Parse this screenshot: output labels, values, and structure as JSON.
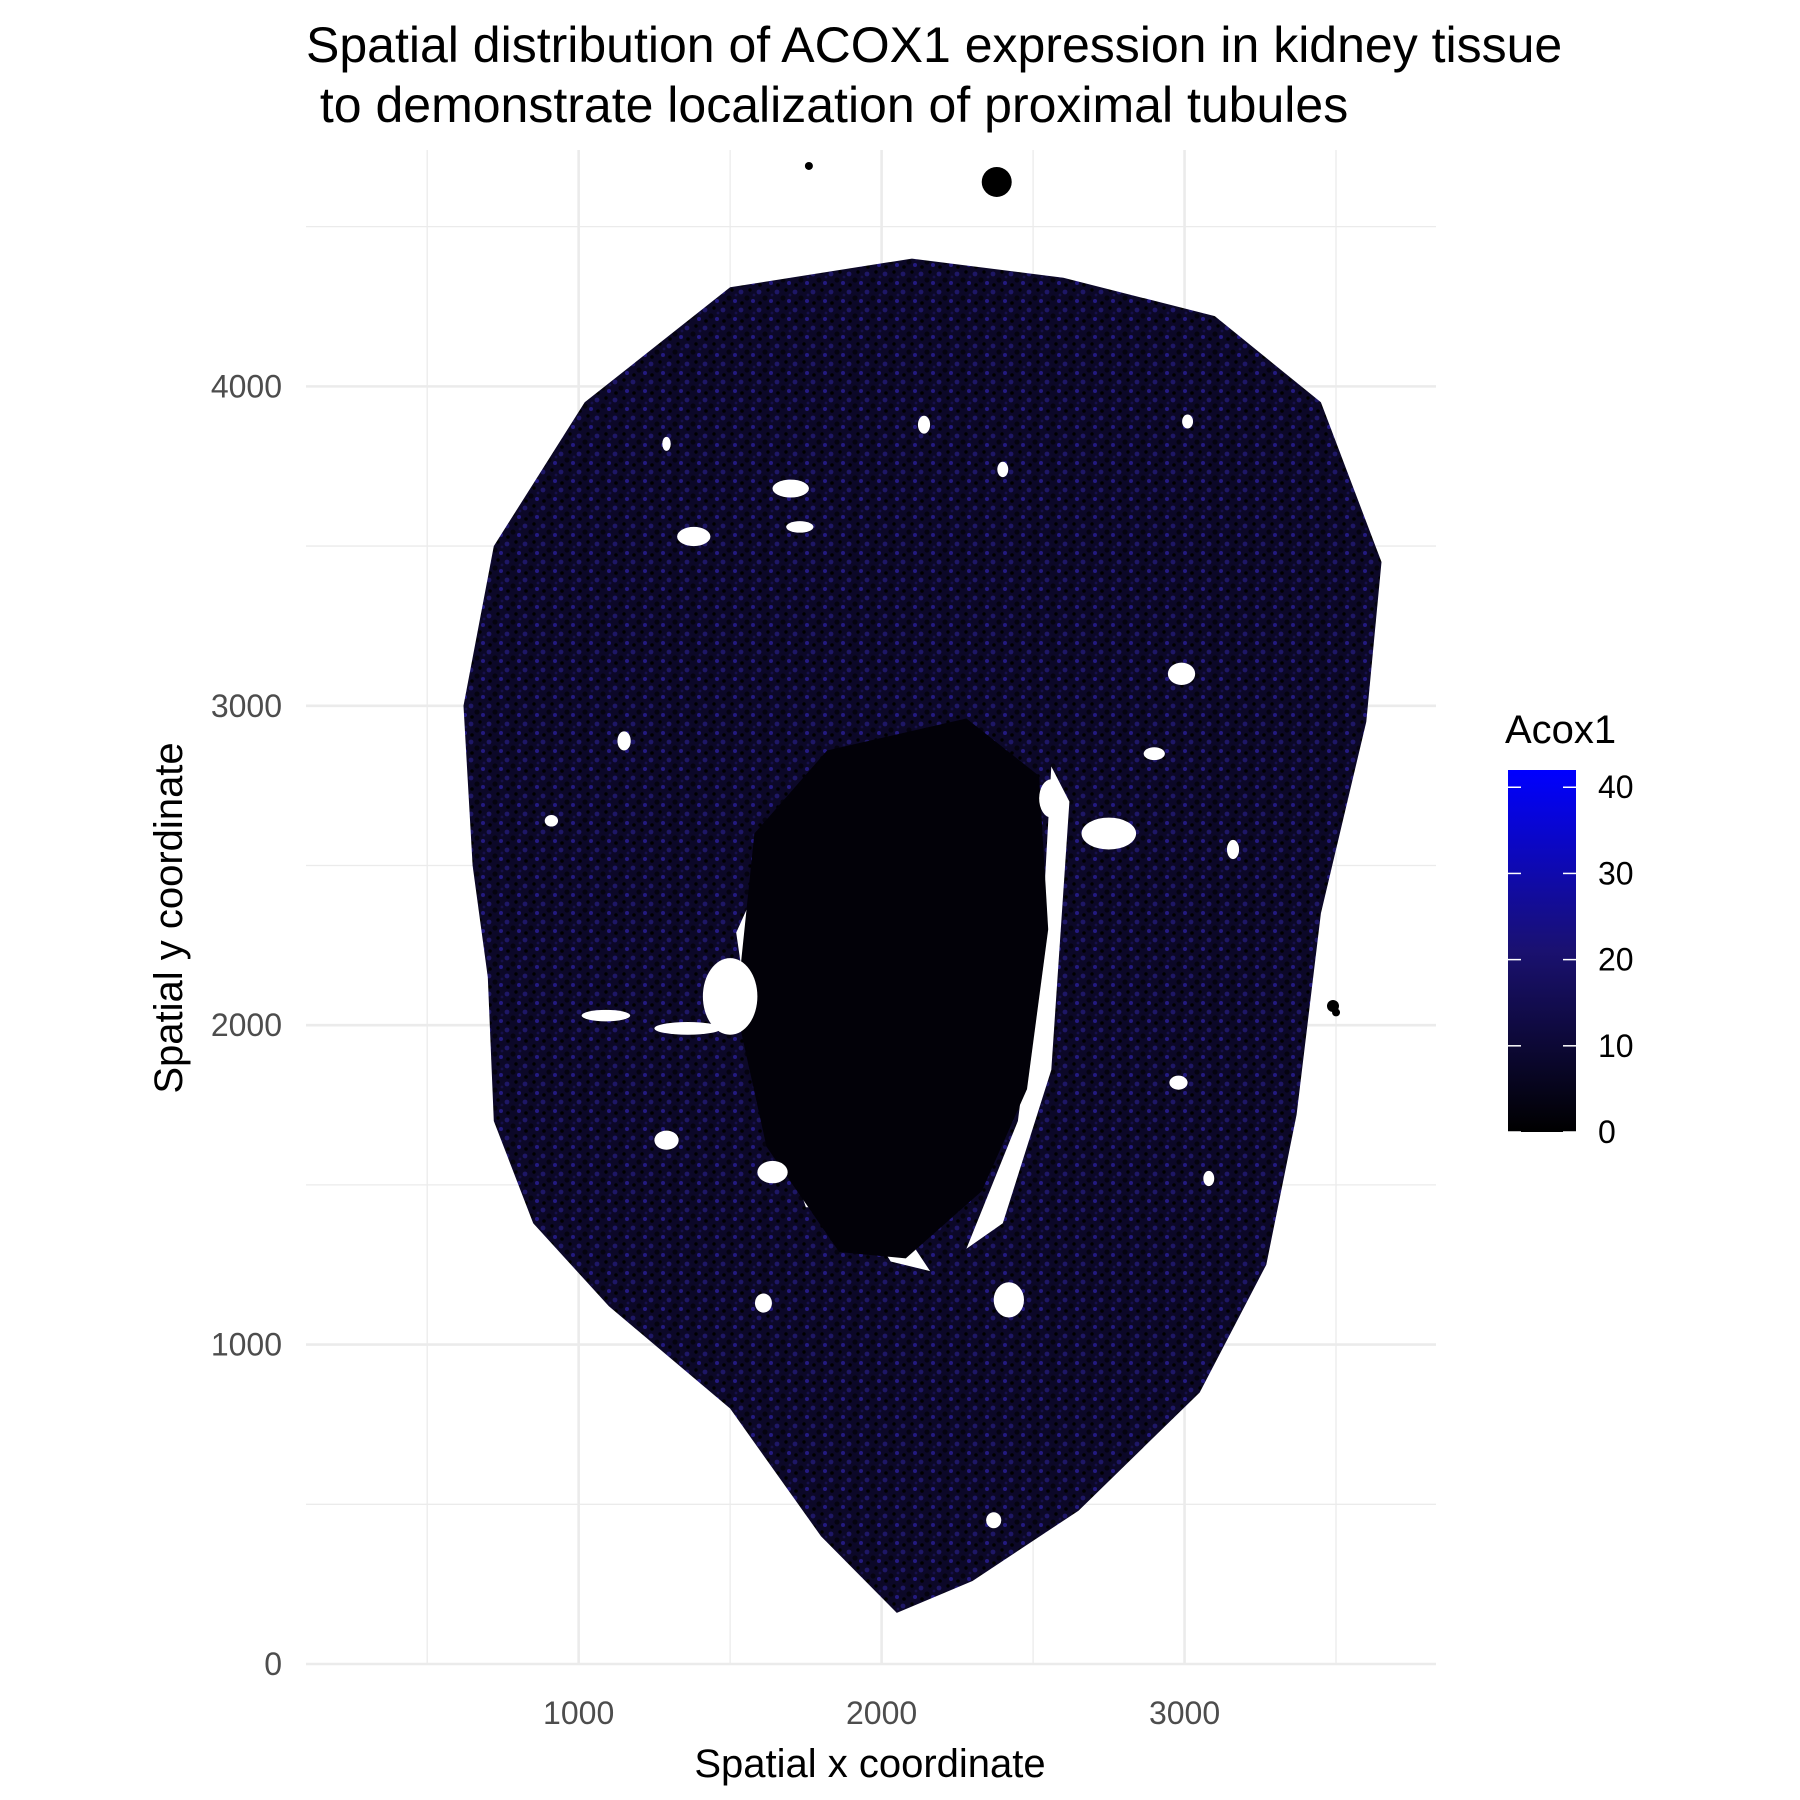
{
  "chart_data": {
    "type": "scatter",
    "title_lines": [
      "Spatial distribution of ACOX1 expression in kidney tissue",
      " to demonstrate localization of proximal tubules"
    ],
    "xlabel": "Spatial x coordinate",
    "ylabel": "Spatial y coordinate",
    "xlim": [
      100,
      3830
    ],
    "ylim": [
      0,
      4740
    ],
    "x_ticks": [
      1000,
      2000,
      3000
    ],
    "y_ticks": [
      0,
      1000,
      2000,
      3000,
      4000
    ],
    "grid": true,
    "legend": {
      "title": "Acox1",
      "placement": "right",
      "color_low": "#000000",
      "color_high": "#0000ff",
      "range": [
        0,
        42
      ],
      "ticks": [
        0,
        10,
        20,
        30,
        40
      ]
    },
    "tissue_outline": [
      [
        700,
        2150
      ],
      [
        720,
        1700
      ],
      [
        850,
        1380
      ],
      [
        1100,
        1120
      ],
      [
        1500,
        800
      ],
      [
        1800,
        400
      ],
      [
        2050,
        160
      ],
      [
        2300,
        260
      ],
      [
        2650,
        480
      ],
      [
        3050,
        850
      ],
      [
        3270,
        1250
      ],
      [
        3370,
        1720
      ],
      [
        3450,
        2350
      ],
      [
        3600,
        2950
      ],
      [
        3650,
        3450
      ],
      [
        3450,
        3950
      ],
      [
        3100,
        4220
      ],
      [
        2600,
        4340
      ],
      [
        2100,
        4400
      ],
      [
        1500,
        4310
      ],
      [
        1020,
        3950
      ],
      [
        720,
        3500
      ],
      [
        620,
        3000
      ],
      [
        650,
        2500
      ]
    ],
    "medulla_outline": [
      [
        1820,
        2860
      ],
      [
        2280,
        2960
      ],
      [
        2520,
        2780
      ],
      [
        2550,
        2300
      ],
      [
        2480,
        1800
      ],
      [
        2330,
        1480
      ],
      [
        2080,
        1270
      ],
      [
        1860,
        1290
      ],
      [
        1620,
        1620
      ],
      [
        1520,
        2050
      ],
      [
        1580,
        2600
      ]
    ],
    "gap_outlines": [
      [
        [
          1520,
          2290
        ],
        [
          1620,
          2500
        ],
        [
          1660,
          2360
        ],
        [
          1800,
          1560
        ],
        [
          1900,
          1430
        ],
        [
          1750,
          1430
        ],
        [
          1580,
          1900
        ]
      ],
      [
        [
          2560,
          2810
        ],
        [
          2620,
          2700
        ],
        [
          2560,
          1860
        ],
        [
          2400,
          1380
        ],
        [
          2280,
          1300
        ],
        [
          2450,
          1700
        ],
        [
          2530,
          2300
        ]
      ],
      [
        [
          1850,
          1420
        ],
        [
          2090,
          1330
        ],
        [
          2160,
          1230
        ],
        [
          2030,
          1260
        ],
        [
          1950,
          1380
        ]
      ]
    ],
    "holes": [
      [
        1500,
        2090,
        90,
        120
      ],
      [
        1640,
        1540,
        50,
        35
      ],
      [
        1360,
        1990,
        110,
        20
      ],
      [
        1090,
        2030,
        80,
        18
      ],
      [
        2560,
        2710,
        40,
        60
      ],
      [
        2750,
        2600,
        90,
        50
      ],
      [
        2990,
        3100,
        45,
        35
      ],
      [
        2900,
        2850,
        35,
        20
      ],
      [
        1150,
        2890,
        22,
        30
      ],
      [
        910,
        2640,
        22,
        18
      ],
      [
        1380,
        3530,
        55,
        30
      ],
      [
        1700,
        3680,
        60,
        28
      ],
      [
        1730,
        3560,
        45,
        18
      ],
      [
        2140,
        3880,
        20,
        28
      ],
      [
        2400,
        3740,
        18,
        24
      ],
      [
        3010,
        3890,
        18,
        22
      ],
      [
        1290,
        3820,
        14,
        22
      ],
      [
        1290,
        1640,
        40,
        30
      ],
      [
        1610,
        1130,
        28,
        30
      ],
      [
        2420,
        1140,
        50,
        55
      ],
      [
        2980,
        1820,
        30,
        22
      ],
      [
        2370,
        450,
        25,
        25
      ],
      [
        3080,
        1520,
        18,
        24
      ],
      [
        3160,
        2550,
        20,
        30
      ]
    ],
    "outlier_points": [
      [
        1760,
        4690,
        4
      ],
      [
        2380,
        4640,
        15
      ],
      [
        3490,
        2060,
        6
      ],
      [
        3500,
        2040,
        4
      ]
    ]
  }
}
